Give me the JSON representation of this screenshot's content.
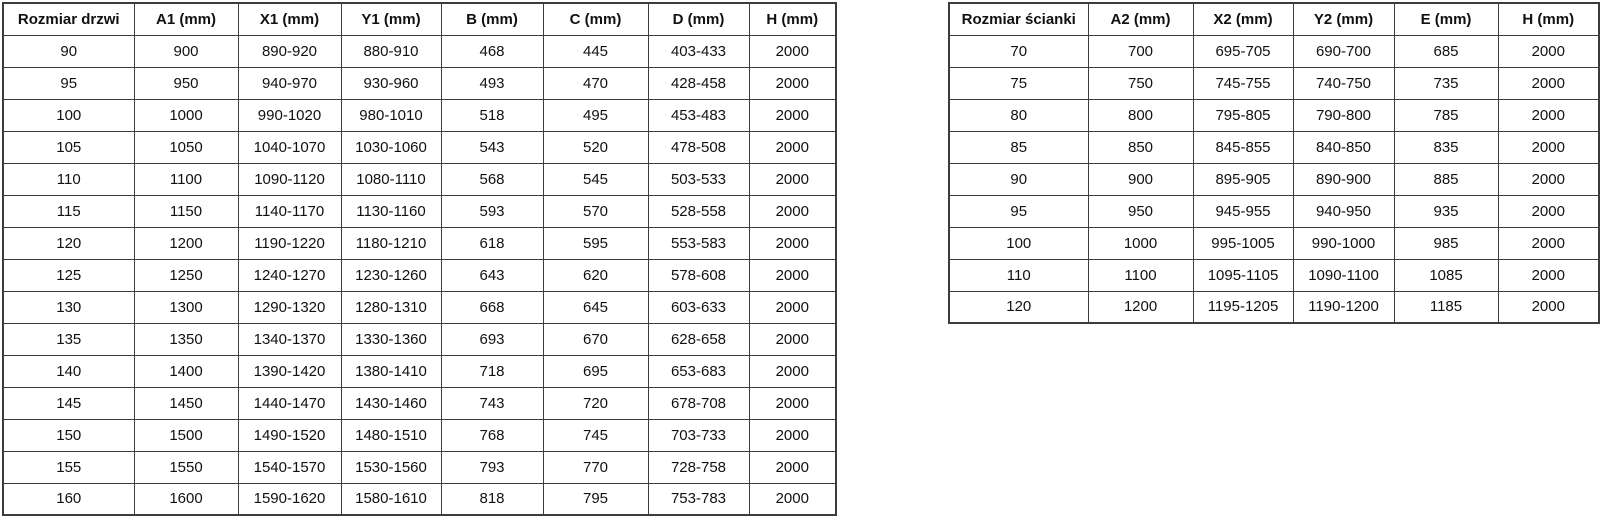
{
  "page": {
    "background": "#ffffff",
    "border_color": "#3c3c3c",
    "text_color": "#111111"
  },
  "door_table": {
    "headers": [
      "Rozmiar drzwi",
      "A1 (mm)",
      "X1 (mm)",
      "Y1 (mm)",
      "B (mm)",
      "C (mm)",
      "D (mm)",
      "H (mm)"
    ],
    "rows": [
      [
        "90",
        "900",
        "890-920",
        "880-910",
        "468",
        "445",
        "403-433",
        "2000"
      ],
      [
        "95",
        "950",
        "940-970",
        "930-960",
        "493",
        "470",
        "428-458",
        "2000"
      ],
      [
        "100",
        "1000",
        "990-1020",
        "980-1010",
        "518",
        "495",
        "453-483",
        "2000"
      ],
      [
        "105",
        "1050",
        "1040-1070",
        "1030-1060",
        "543",
        "520",
        "478-508",
        "2000"
      ],
      [
        "110",
        "1100",
        "1090-1120",
        "1080-1110",
        "568",
        "545",
        "503-533",
        "2000"
      ],
      [
        "115",
        "1150",
        "1140-1170",
        "1130-1160",
        "593",
        "570",
        "528-558",
        "2000"
      ],
      [
        "120",
        "1200",
        "1190-1220",
        "1180-1210",
        "618",
        "595",
        "553-583",
        "2000"
      ],
      [
        "125",
        "1250",
        "1240-1270",
        "1230-1260",
        "643",
        "620",
        "578-608",
        "2000"
      ],
      [
        "130",
        "1300",
        "1290-1320",
        "1280-1310",
        "668",
        "645",
        "603-633",
        "2000"
      ],
      [
        "135",
        "1350",
        "1340-1370",
        "1330-1360",
        "693",
        "670",
        "628-658",
        "2000"
      ],
      [
        "140",
        "1400",
        "1390-1420",
        "1380-1410",
        "718",
        "695",
        "653-683",
        "2000"
      ],
      [
        "145",
        "1450",
        "1440-1470",
        "1430-1460",
        "743",
        "720",
        "678-708",
        "2000"
      ],
      [
        "150",
        "1500",
        "1490-1520",
        "1480-1510",
        "768",
        "745",
        "703-733",
        "2000"
      ],
      [
        "155",
        "1550",
        "1540-1570",
        "1530-1560",
        "793",
        "770",
        "728-758",
        "2000"
      ],
      [
        "160",
        "1600",
        "1590-1620",
        "1580-1610",
        "818",
        "795",
        "753-783",
        "2000"
      ]
    ]
  },
  "wall_table": {
    "headers": [
      "Rozmiar ścianki",
      "A2 (mm)",
      "X2 (mm)",
      "Y2 (mm)",
      "E (mm)",
      "H (mm)"
    ],
    "rows": [
      [
        "70",
        "700",
        "695-705",
        "690-700",
        "685",
        "2000"
      ],
      [
        "75",
        "750",
        "745-755",
        "740-750",
        "735",
        "2000"
      ],
      [
        "80",
        "800",
        "795-805",
        "790-800",
        "785",
        "2000"
      ],
      [
        "85",
        "850",
        "845-855",
        "840-850",
        "835",
        "2000"
      ],
      [
        "90",
        "900",
        "895-905",
        "890-900",
        "885",
        "2000"
      ],
      [
        "95",
        "950",
        "945-955",
        "940-950",
        "935",
        "2000"
      ],
      [
        "100",
        "1000",
        "995-1005",
        "990-1000",
        "985",
        "2000"
      ],
      [
        "110",
        "1100",
        "1095-1105",
        "1090-1100",
        "1085",
        "2000"
      ],
      [
        "120",
        "1200",
        "1195-1205",
        "1190-1200",
        "1185",
        "2000"
      ]
    ]
  }
}
